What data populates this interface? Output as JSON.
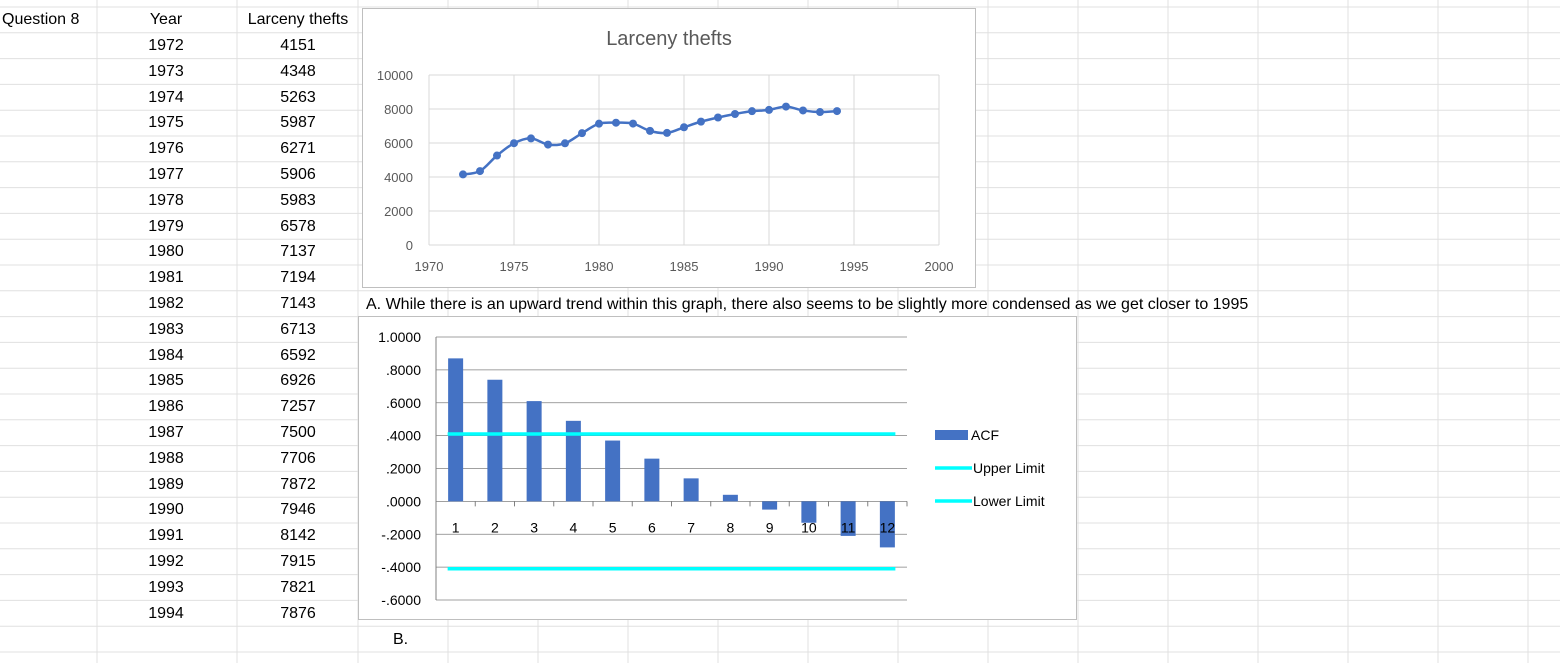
{
  "sheet": {
    "label": "Question 8",
    "headers": {
      "year": "Year",
      "thefts": "Larceny thefts"
    },
    "rows": [
      {
        "year": "1972",
        "value": "4151"
      },
      {
        "year": "1973",
        "value": "4348"
      },
      {
        "year": "1974",
        "value": "5263"
      },
      {
        "year": "1975",
        "value": "5987"
      },
      {
        "year": "1976",
        "value": "6271"
      },
      {
        "year": "1977",
        "value": "5906"
      },
      {
        "year": "1978",
        "value": "5983"
      },
      {
        "year": "1979",
        "value": "6578"
      },
      {
        "year": "1980",
        "value": "7137"
      },
      {
        "year": "1981",
        "value": "7194"
      },
      {
        "year": "1982",
        "value": "7143"
      },
      {
        "year": "1983",
        "value": "6713"
      },
      {
        "year": "1984",
        "value": "6592"
      },
      {
        "year": "1985",
        "value": "6926"
      },
      {
        "year": "1986",
        "value": "7257"
      },
      {
        "year": "1987",
        "value": "7500"
      },
      {
        "year": "1988",
        "value": "7706"
      },
      {
        "year": "1989",
        "value": "7872"
      },
      {
        "year": "1990",
        "value": "7946"
      },
      {
        "year": "1991",
        "value": "8142"
      },
      {
        "year": "1992",
        "value": "7915"
      },
      {
        "year": "1993",
        "value": "7821"
      },
      {
        "year": "1994",
        "value": "7876"
      }
    ],
    "note_a": "A. While there is an upward trend within this graph, there also seems to be slightly more condensed as we get closer to 1995",
    "note_b": "B."
  },
  "chart_data": [
    {
      "type": "scatter",
      "title": "Larceny thefts",
      "line": "smooth",
      "color": "#4472C4",
      "x": [
        1972,
        1973,
        1974,
        1975,
        1976,
        1977,
        1978,
        1979,
        1980,
        1981,
        1982,
        1983,
        1984,
        1985,
        1986,
        1987,
        1988,
        1989,
        1990,
        1991,
        1992,
        1993,
        1994
      ],
      "y": [
        4151,
        4348,
        5263,
        5987,
        6271,
        5906,
        5983,
        6578,
        7137,
        7194,
        7143,
        6713,
        6592,
        6926,
        7257,
        7500,
        7706,
        7872,
        7946,
        8142,
        7915,
        7821,
        7876
      ],
      "xlim": [
        1970,
        2000
      ],
      "ylim": [
        0,
        10000
      ],
      "xticks": [
        "1970",
        "1975",
        "1980",
        "1985",
        "1990",
        "1995",
        "2000"
      ],
      "yticks": [
        "0",
        "2000",
        "4000",
        "6000",
        "8000",
        "10000"
      ],
      "grid": true
    },
    {
      "type": "bar",
      "categories": [
        "1",
        "2",
        "3",
        "4",
        "5",
        "6",
        "7",
        "8",
        "9",
        "10",
        "11",
        "12"
      ],
      "series": [
        {
          "name": "ACF",
          "values": [
            0.87,
            0.74,
            0.61,
            0.49,
            0.37,
            0.26,
            0.14,
            0.04,
            -0.05,
            -0.13,
            -0.21,
            -0.28
          ],
          "color": "#4472C4"
        },
        {
          "name": "Upper Limit",
          "value": 0.41,
          "color": "#00FFFF"
        },
        {
          "name": "Lower Limit",
          "value": -0.41,
          "color": "#00FFFF"
        }
      ],
      "ylim": [
        -0.6,
        1.0
      ],
      "yticks": [
        "1.0000",
        ".8000",
        ".6000",
        ".4000",
        ".2000",
        ".0000",
        "-.2000",
        "-.4000",
        "-.6000"
      ],
      "legend": "right",
      "grid": true
    }
  ]
}
